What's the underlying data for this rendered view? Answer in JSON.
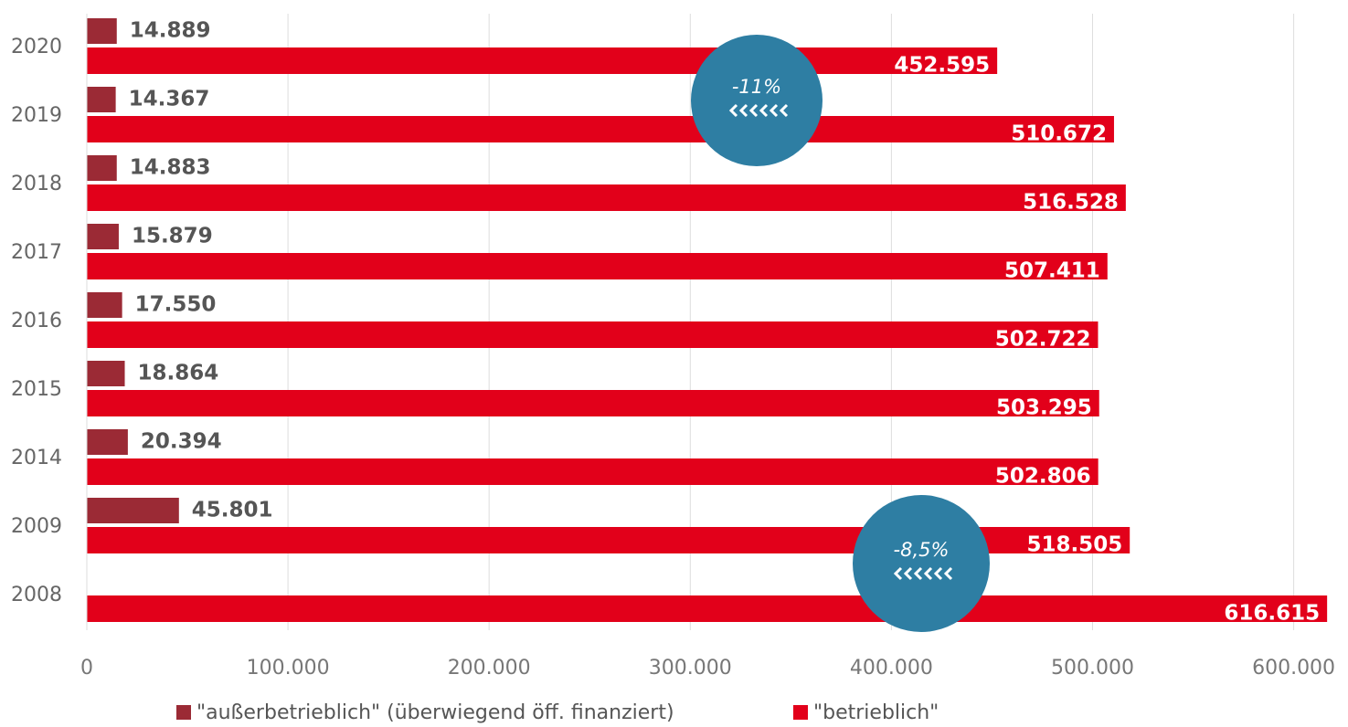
{
  "chart_data": {
    "type": "bar",
    "orientation": "horizontal",
    "categories": [
      "2020",
      "2019",
      "2018",
      "2017",
      "2016",
      "2015",
      "2014",
      "2009",
      "2008"
    ],
    "series": [
      {
        "name": "\"außerbetrieblich\" (überwiegend öff. finanziert)",
        "color": "#9b2a35",
        "values": [
          14889,
          14367,
          14883,
          15879,
          17550,
          18864,
          20394,
          45801,
          null
        ],
        "value_labels": [
          "14.889",
          "14.367",
          "14.883",
          "15.879",
          "17.550",
          "18.864",
          "20.394",
          "45.801",
          null
        ]
      },
      {
        "name": "\"betrieblich\"",
        "color": "#e2001a",
        "values": [
          452595,
          510672,
          516528,
          507411,
          502722,
          503295,
          502806,
          518505,
          616615
        ],
        "value_labels": [
          "452.595",
          "510.672",
          "516.528",
          "507.411",
          "502.722",
          "503.295",
          "502.806",
          "518.505",
          "616.615"
        ]
      }
    ],
    "xlim": [
      0,
      627000
    ],
    "xticks": [
      0,
      {
        "value": 100000,
        "label": "100.000"
      },
      {
        "value": 200000,
        "label": "200.000"
      },
      {
        "value": 300000,
        "label": "300.000"
      },
      {
        "value": 400000,
        "label": "400.000"
      },
      {
        "value": 500000,
        "label": "500.000"
      },
      {
        "value": 600000,
        "label": "600.000"
      }
    ],
    "grid": true,
    "annotations": [
      "-11%",
      "-8,5%"
    ],
    "annotation_color": "#2e7ea3"
  }
}
